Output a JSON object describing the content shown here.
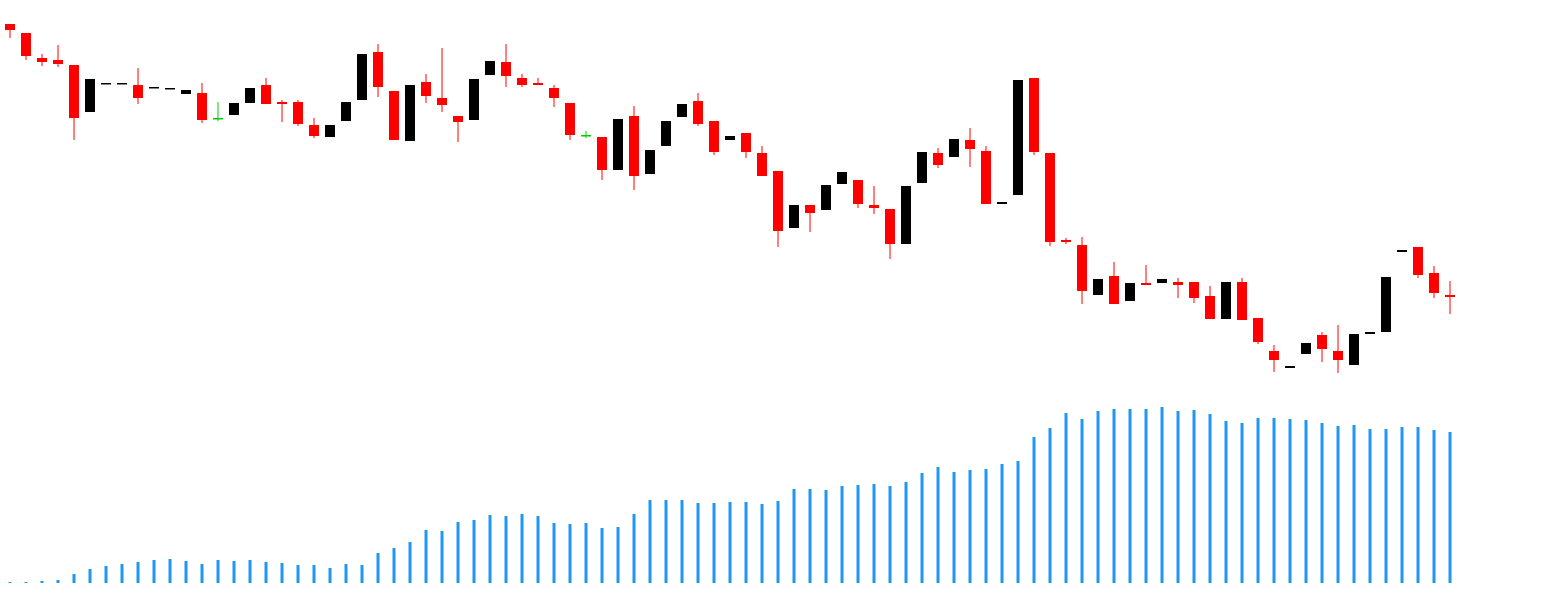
{
  "chart_data": [
    {
      "type": "candlestick",
      "open": [
        576,
        567,
        542,
        540,
        535,
        488,
        517,
        517,
        515,
        513,
        512,
        506,
        507,
        482,
        485,
        497,
        515,
        498,
        498,
        475,
        463,
        479,
        500,
        548,
        509,
        459,
        518,
        502,
        484,
        480,
        525,
        538,
        522,
        517,
        512,
        497,
        465,
        463,
        430,
        484,
        426,
        454,
        483,
        499,
        479,
        460,
        467,
        447,
        429,
        372,
        395,
        390,
        416,
        420,
        395,
        391,
        356,
        417,
        447,
        443,
        460,
        449,
        396,
        405,
        522,
        447,
        360,
        355,
        305,
        324,
        299,
        317,
        317,
        318,
        318,
        304,
        281,
        318,
        282,
        249,
        232,
        246,
        265,
        249,
        235,
        266,
        268,
        348,
        353,
        327,
        305
      ],
      "high": [
        576,
        567,
        546,
        555,
        535,
        521,
        517,
        517,
        532,
        513,
        512,
        510,
        517,
        498,
        497,
        512,
        522,
        500,
        500,
        482,
        475,
        498,
        546,
        556,
        509,
        515,
        526,
        552,
        484,
        521,
        539,
        556,
        526,
        522,
        515,
        497,
        469,
        463,
        481,
        494,
        450,
        479,
        496,
        507,
        479,
        464,
        467,
        454,
        429,
        395,
        395,
        415,
        428,
        420,
        414,
        391,
        414,
        448,
        452,
        461,
        472,
        454,
        398,
        520,
        522,
        447,
        362,
        363,
        321,
        338,
        317,
        335,
        321,
        322,
        318,
        314,
        318,
        322,
        282,
        255,
        234,
        257,
        268,
        275,
        266,
        268,
        323,
        350,
        353,
        334,
        319
      ],
      "low": [
        562,
        540,
        534,
        533,
        460,
        488,
        517,
        517,
        496,
        513,
        512,
        506,
        477,
        479,
        485,
        497,
        496,
        478,
        474,
        462,
        463,
        479,
        500,
        503,
        460,
        459,
        497,
        488,
        458,
        480,
        525,
        513,
        513,
        515,
        493,
        460,
        462,
        420,
        430,
        410,
        426,
        454,
        483,
        474,
        445,
        460,
        442,
        424,
        353,
        372,
        368,
        390,
        416,
        392,
        386,
        341,
        356,
        417,
        432,
        443,
        433,
        396,
        396,
        405,
        445,
        354,
        356,
        296,
        305,
        296,
        299,
        315,
        317,
        302,
        297,
        281,
        281,
        280,
        256,
        228,
        232,
        246,
        238,
        227,
        235,
        266,
        268,
        348,
        322,
        302,
        286
      ],
      "close": [
        570,
        544,
        538,
        536,
        482,
        521,
        517,
        517,
        502,
        513,
        512,
        510,
        480,
        482,
        497,
        512,
        496,
        496,
        476,
        464,
        475,
        498,
        546,
        513,
        460,
        515,
        504,
        495,
        478,
        521,
        539,
        524,
        515,
        515,
        502,
        465,
        465,
        430,
        481,
        424,
        450,
        479,
        496,
        476,
        448,
        464,
        448,
        424,
        369,
        395,
        387,
        415,
        428,
        396,
        392,
        356,
        414,
        448,
        435,
        461,
        451,
        396,
        398,
        520,
        448,
        358,
        358,
        309,
        321,
        296,
        317,
        315,
        321,
        315,
        302,
        281,
        318,
        280,
        258,
        240,
        234,
        257,
        251,
        240,
        266,
        268,
        323,
        350,
        325,
        307,
        303
      ],
      "up_color": "#000000",
      "down_color": "#ff0000",
      "doji_color": "#00cc00",
      "ylim": [
        200,
        600
      ]
    },
    {
      "type": "bar",
      "values": [
        1,
        1,
        2,
        3,
        9,
        14,
        17,
        19,
        21,
        23,
        24,
        22,
        19,
        23,
        22,
        23,
        21,
        20,
        18,
        18,
        15,
        19,
        18,
        30,
        35,
        41,
        53,
        52,
        61,
        63,
        68,
        67,
        69,
        67,
        60,
        59,
        60,
        55,
        56,
        69,
        83,
        83,
        83,
        80,
        80,
        81,
        81,
        79,
        82,
        94,
        94,
        93,
        97,
        98,
        99,
        97,
        101,
        110,
        116,
        111,
        113,
        114,
        119,
        122,
        146,
        155,
        170,
        164,
        172,
        174,
        174,
        174,
        176,
        172,
        173,
        169,
        162,
        160,
        165,
        165,
        164,
        163,
        160,
        157,
        158,
        154,
        154,
        156,
        156,
        153,
        151
      ],
      "color": "#2196f3",
      "ylim": [
        0,
        200
      ]
    }
  ]
}
